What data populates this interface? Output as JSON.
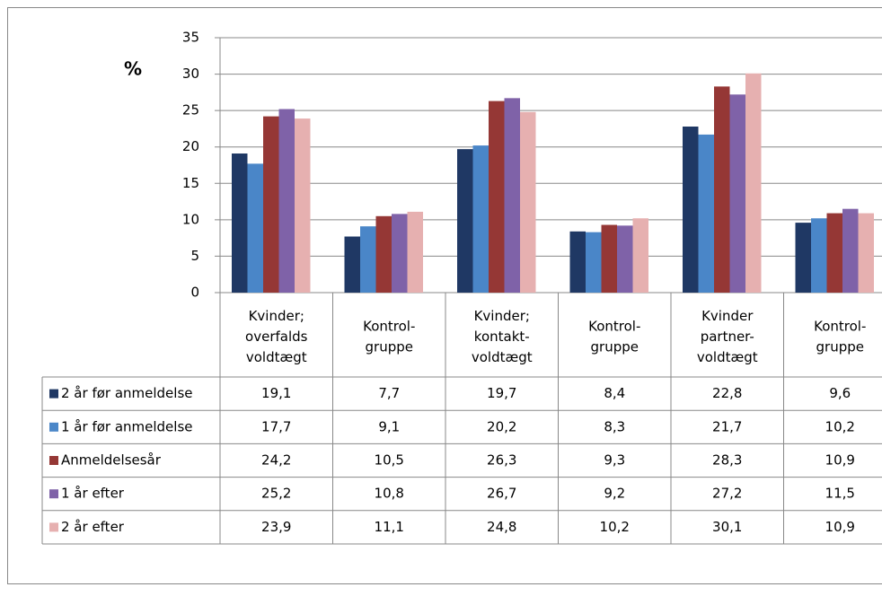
{
  "chart_data": {
    "type": "bar",
    "ylabel": "%",
    "categories": [
      "Kvinder;\noverfalds\nvoldtægt",
      "Kontrol-\ngruppe",
      "Kvinder;\nkontakt-\nvoldtægt",
      "Kontrol-\ngruppe",
      "Kvinder\npartner-\nvoldtægt",
      "Kontrol-\ngruppe"
    ],
    "series": [
      {
        "name": "2 år før anmeldelse",
        "color": "#1f3864",
        "values": [
          19.1,
          7.7,
          19.7,
          8.4,
          22.8,
          9.6
        ],
        "value_labels": [
          "19,1",
          "7,7",
          "19,7",
          "8,4",
          "22,8",
          "9,6"
        ]
      },
      {
        "name": "1 år før anmeldelse",
        "color": "#4a86c8",
        "values": [
          17.7,
          9.1,
          20.2,
          8.3,
          21.7,
          10.2
        ],
        "value_labels": [
          "17,7",
          "9,1",
          "20,2",
          "8,3",
          "21,7",
          "10,2"
        ]
      },
      {
        "name": "Anmeldelsesår",
        "color": "#953735",
        "values": [
          24.2,
          10.5,
          26.3,
          9.3,
          28.3,
          10.9
        ],
        "value_labels": [
          "24,2",
          "10,5",
          "26,3",
          "9,3",
          "28,3",
          "10,9"
        ]
      },
      {
        "name": "1 år efter",
        "color": "#7f62a8",
        "values": [
          25.2,
          10.8,
          26.7,
          9.2,
          27.2,
          11.5
        ],
        "value_labels": [
          "25,2",
          "10,8",
          "26,7",
          "9,2",
          "27,2",
          "11,5"
        ]
      },
      {
        "name": "2 år efter",
        "color": "#e6b0b0",
        "values": [
          23.9,
          11.1,
          24.8,
          10.2,
          30.1,
          10.9
        ],
        "value_labels": [
          "23,9",
          "11,1",
          "24,8",
          "10,2",
          "30,1",
          "10,9"
        ]
      }
    ],
    "ylim": [
      0,
      35
    ],
    "yticks": [
      0,
      5,
      10,
      15,
      20,
      25,
      30,
      35
    ],
    "grid": true
  }
}
